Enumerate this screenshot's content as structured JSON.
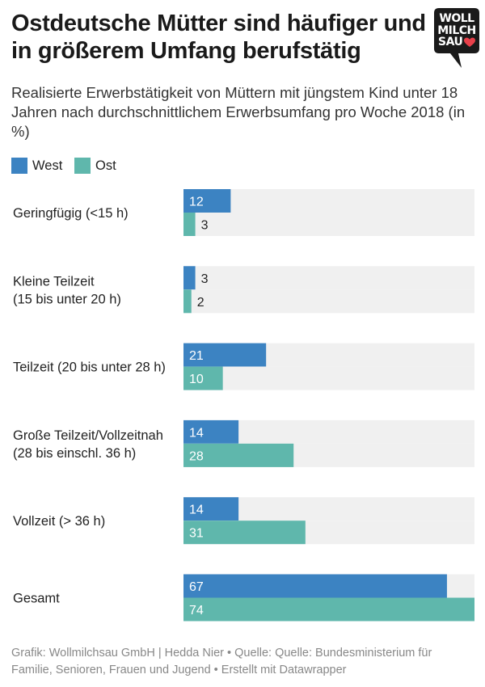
{
  "header": {
    "title": "Ostdeutsche Mütter sind häufiger und in größerem Umfang berufstätig",
    "subtitle": "Realisierte Erwerbstätigkeit von Müttern mit jüngstem Kind unter 18 Jahren nach durchschnittlichem Erwerbsumfang pro Woche 2018 (in %)"
  },
  "logo": {
    "lines": [
      "WOLL",
      "MILCH",
      "SAU"
    ],
    "icon": "heart-icon",
    "color": "#1a1a1a",
    "heart_color": "#e8404a"
  },
  "legend": [
    {
      "label": "West",
      "color": "#3c83c2"
    },
    {
      "label": "Ost",
      "color": "#5fb7ac"
    }
  ],
  "chart_data": {
    "type": "bar",
    "orientation": "horizontal",
    "categories": [
      [
        "Geringfügig (<15 h)"
      ],
      [
        "Kleine Teilzeit",
        "(15 bis unter 20 h)"
      ],
      [
        "Teilzeit (20 bis unter 28 h)"
      ],
      [
        "Große Teilzeit/Vollzeitnah",
        "(28 bis einschl. 36 h)"
      ],
      [
        "Vollzeit (> 36 h)"
      ],
      [
        "Gesamt"
      ]
    ],
    "series": [
      {
        "name": "West",
        "color": "#3c83c2",
        "values": [
          12,
          3.0,
          21,
          14,
          14,
          67
        ]
      },
      {
        "name": "Ost",
        "color": "#5fb7ac",
        "values": [
          3,
          2,
          10,
          28,
          31,
          74
        ]
      }
    ],
    "xlim": [
      0,
      74
    ],
    "background_track_color": "#f0f0f0",
    "grid": false
  },
  "footer": {
    "text": "Grafik: Wollmilchsau GmbH | Hedda Nier • Quelle: Quelle: Bundesministerium für Familie, Senioren, Frauen und Jugend • Erstellt mit Datawrapper"
  }
}
